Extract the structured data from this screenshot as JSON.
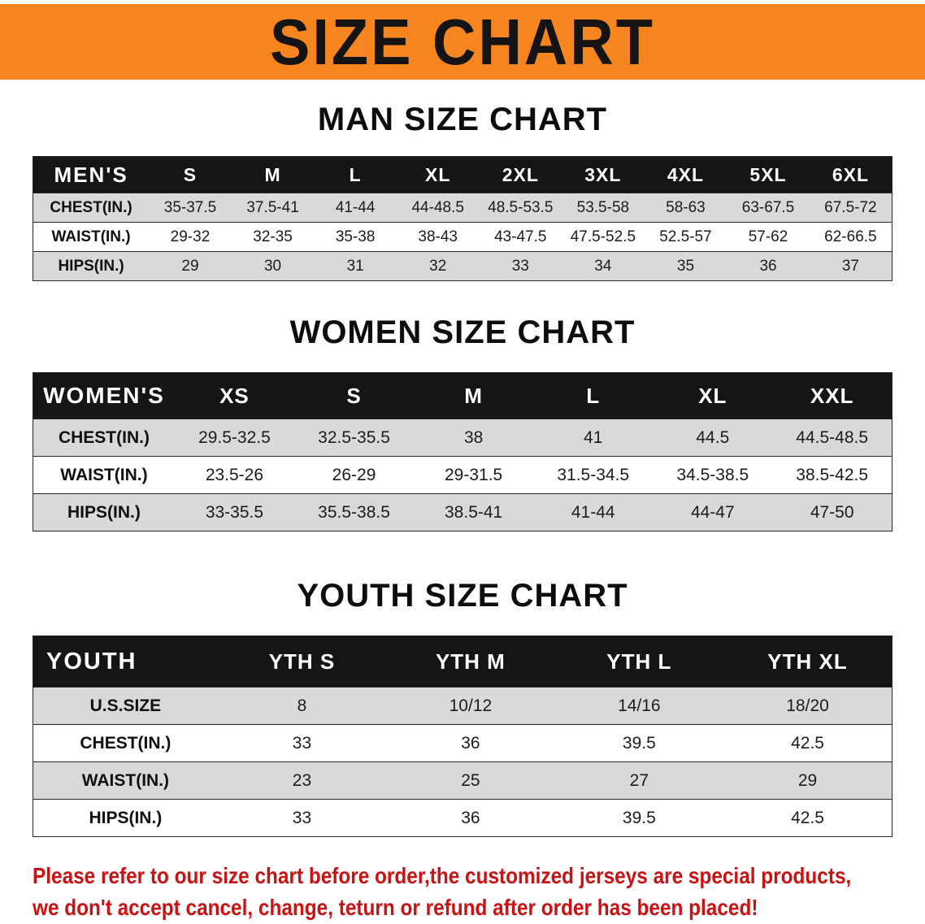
{
  "banner": {
    "title": "SIZE CHART"
  },
  "chart_data": [
    {
      "type": "table",
      "title": "MAN SIZE CHART",
      "columns": [
        "MEN'S",
        "S",
        "M",
        "L",
        "XL",
        "2XL",
        "3XL",
        "4XL",
        "5XL",
        "6XL"
      ],
      "rows": [
        [
          "CHEST(IN.)",
          "35-37.5",
          "37.5-41",
          "41-44",
          "44-48.5",
          "48.5-53.5",
          "53.5-58",
          "58-63",
          "63-67.5",
          "67.5-72"
        ],
        [
          "WAIST(IN.)",
          "29-32",
          "32-35",
          "35-38",
          "38-43",
          "43-47.5",
          "47.5-52.5",
          "52.5-57",
          "57-62",
          "62-66.5"
        ],
        [
          "HIPS(IN.)",
          "29",
          "30",
          "31",
          "32",
          "33",
          "34",
          "35",
          "36",
          "37"
        ]
      ]
    },
    {
      "type": "table",
      "title": "WOMEN SIZE CHART",
      "columns": [
        "WOMEN'S",
        "XS",
        "S",
        "M",
        "L",
        "XL",
        "XXL"
      ],
      "rows": [
        [
          "CHEST(IN.)",
          "29.5-32.5",
          "32.5-35.5",
          "38",
          "41",
          "44.5",
          "44.5-48.5"
        ],
        [
          "WAIST(IN.)",
          "23.5-26",
          "26-29",
          "29-31.5",
          "31.5-34.5",
          "34.5-38.5",
          "38.5-42.5"
        ],
        [
          "HIPS(IN.)",
          "33-35.5",
          "35.5-38.5",
          "38.5-41",
          "41-44",
          "44-47",
          "47-50"
        ]
      ]
    },
    {
      "type": "table",
      "title": "YOUTH SIZE CHART",
      "columns": [
        "YOUTH",
        "YTH S",
        "YTH M",
        "YTH L",
        "YTH XL"
      ],
      "rows": [
        [
          "U.S.SIZE",
          "8",
          "10/12",
          "14/16",
          "18/20"
        ],
        [
          "CHEST(IN.)",
          "33",
          "36",
          "39.5",
          "42.5"
        ],
        [
          "WAIST(IN.)",
          "23",
          "25",
          "27",
          "29"
        ],
        [
          "HIPS(IN.)",
          "33",
          "36",
          "39.5",
          "42.5"
        ]
      ]
    }
  ],
  "disclaimer": {
    "line1": "Please refer to our size chart before order,the customized jerseys are special products,",
    "line2": "we don't accept cancel, change, teturn or refund after order has been placed!"
  },
  "colors": {
    "banner-bg": "#f6851f",
    "banner-text": "#141414",
    "header-bg": "#151515",
    "row-stripe": "#d9d9d9",
    "disclaimer-color": "#cb1111"
  }
}
